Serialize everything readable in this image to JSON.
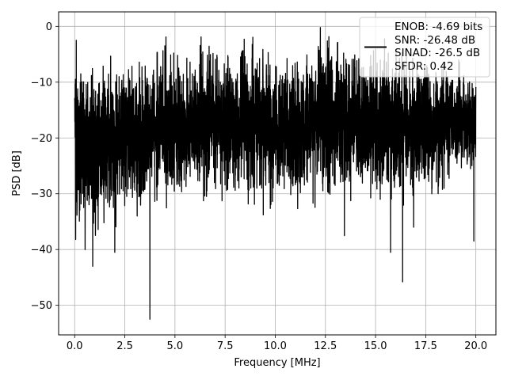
{
  "chart_data": {
    "type": "line",
    "title": "",
    "xlabel": "Frequency [MHz]",
    "ylabel": "PSD [dB]",
    "xlim": [
      -0.8,
      21.0
    ],
    "ylim": [
      -55.3,
      2.6
    ],
    "xticks": [
      0.0,
      2.5,
      5.0,
      7.5,
      10.0,
      12.5,
      15.0,
      17.5,
      20.0
    ],
    "xtick_labels": [
      "0.0",
      "2.5",
      "5.0",
      "7.5",
      "10.0",
      "12.5",
      "15.0",
      "17.5",
      "20.0"
    ],
    "yticks": [
      0,
      -10,
      -20,
      -30,
      -40,
      -50
    ],
    "ytick_labels": [
      "0",
      "−10",
      "−20",
      "−30",
      "−40",
      "−50"
    ],
    "grid": true,
    "legend_position": "top-right",
    "legend": {
      "lines": [
        "ENOB: -4.69 bits",
        "SNR: -26.48 dB",
        "SINAD: -26.5 dB",
        "SFDR: 0.42"
      ]
    },
    "series": [
      {
        "color": "#000000",
        "x_start": 0.0,
        "x_end": 20.0,
        "envelope_upper": [
          [
            0.0,
            -8
          ],
          [
            0.08,
            -3
          ],
          [
            0.5,
            -7
          ],
          [
            1.0,
            -8
          ],
          [
            2.0,
            -7
          ],
          [
            3.0,
            -7
          ],
          [
            4.5,
            -5
          ],
          [
            6.0,
            -6
          ],
          [
            6.3,
            -2
          ],
          [
            7.0,
            -5
          ],
          [
            8.0,
            -6
          ],
          [
            9.0,
            -4
          ],
          [
            10.0,
            -6
          ],
          [
            12.0,
            -5
          ],
          [
            12.2,
            -0.5
          ],
          [
            13.0,
            -4
          ],
          [
            15.0,
            -5
          ],
          [
            17.5,
            -6
          ],
          [
            20.0,
            -10
          ]
        ],
        "envelope_lower": [
          [
            0.0,
            -18
          ],
          [
            0.05,
            -38
          ],
          [
            0.5,
            -33
          ],
          [
            1.0,
            -38
          ],
          [
            2.0,
            -33
          ],
          [
            3.0,
            -32
          ],
          [
            5.0,
            -31
          ],
          [
            7.0,
            -30
          ],
          [
            9.0,
            -30
          ],
          [
            11.0,
            -31
          ],
          [
            13.0,
            -30
          ],
          [
            15.0,
            -29
          ],
          [
            17.0,
            -31
          ],
          [
            20.0,
            -24
          ]
        ],
        "dips": [
          [
            0.05,
            -38.2
          ],
          [
            0.52,
            -40.0
          ],
          [
            0.9,
            -43.0
          ],
          [
            2.0,
            -40.5
          ],
          [
            3.75,
            -52.5
          ],
          [
            8.45,
            -40.3
          ],
          [
            13.45,
            -37.5
          ],
          [
            15.75,
            -40.5
          ],
          [
            16.35,
            -45.8
          ],
          [
            16.9,
            -36.0
          ],
          [
            19.9,
            -38.5
          ]
        ],
        "peaks": [
          [
            0.08,
            -2.5
          ],
          [
            4.55,
            -1.9
          ],
          [
            6.3,
            -1.9
          ],
          [
            8.45,
            -2.3
          ],
          [
            12.25,
            -0.2
          ],
          [
            12.6,
            -2.6
          ]
        ],
        "points": 4000
      }
    ]
  }
}
